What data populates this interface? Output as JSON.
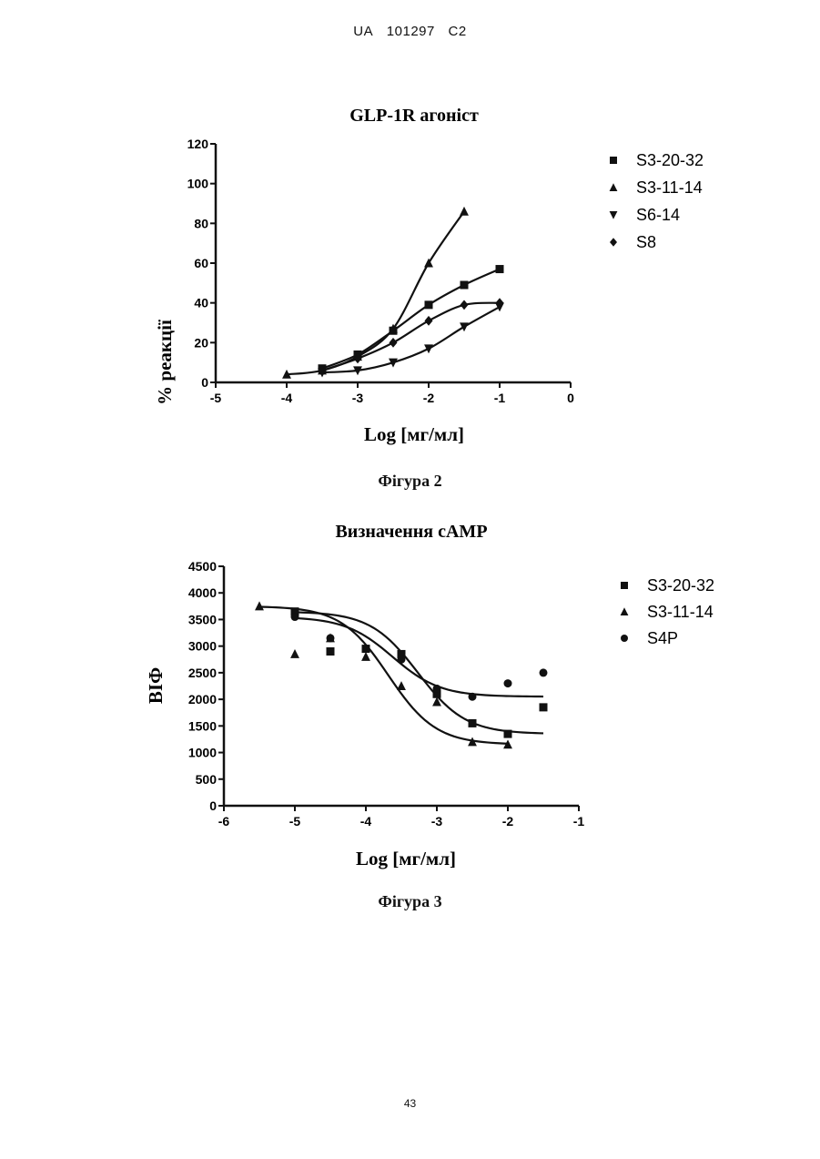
{
  "header": {
    "country": "UA",
    "number": "101297",
    "kind": "C2"
  },
  "figure2": {
    "caption": "Фігура 2"
  },
  "figure3": {
    "caption": "Фігура 3"
  },
  "page_number": "43",
  "chart_data": [
    {
      "type": "line",
      "title": "GLP-1R агоніст",
      "xlabel": "Log [мг/мл]",
      "ylabel": "% реакції",
      "xlim": [
        -5,
        0
      ],
      "ylim": [
        0,
        120
      ],
      "xticks": [
        -5,
        -4,
        -3,
        -2,
        -1,
        0
      ],
      "yticks": [
        0,
        20,
        40,
        60,
        80,
        100,
        120
      ],
      "legend_position": "right",
      "series": [
        {
          "name": "S3-20-32",
          "marker": "square",
          "x": [
            -3.5,
            -3,
            -2.5,
            -2,
            -1.5,
            -1
          ],
          "y": [
            7,
            14,
            26,
            39,
            49,
            57
          ]
        },
        {
          "name": "S3-11-14",
          "marker": "triangle-up",
          "x": [
            -4,
            -3.5,
            -3,
            -2.5,
            -2,
            -1.5
          ],
          "y": [
            4,
            6,
            13,
            27,
            60,
            86
          ]
        },
        {
          "name": "S6-14",
          "marker": "triangle-down",
          "x": [
            -3.5,
            -3,
            -2.5,
            -2,
            -1.5,
            -1
          ],
          "y": [
            5,
            6,
            10,
            17,
            28,
            38
          ]
        },
        {
          "name": "S8",
          "marker": "diamond",
          "x": [
            -3.5,
            -3,
            -2.5,
            -2,
            -1.5,
            -1
          ],
          "y": [
            6,
            12,
            20,
            31,
            39,
            40
          ]
        }
      ]
    },
    {
      "type": "scatter",
      "title": "Визначення cAMP",
      "xlabel": "Log [мг/мл]",
      "ylabel": "ВІФ",
      "xlim": [
        -6,
        -1
      ],
      "ylim": [
        0,
        4500
      ],
      "xticks": [
        -6,
        -5,
        -4,
        -3,
        -2,
        -1
      ],
      "yticks": [
        0,
        500,
        1000,
        1500,
        2000,
        2500,
        3000,
        3500,
        4000,
        4500
      ],
      "legend_position": "right",
      "series": [
        {
          "name": "S3-20-32",
          "marker": "square",
          "x": [
            -5,
            -4.5,
            -4,
            -3.5,
            -3,
            -2.5,
            -2,
            -1.5
          ],
          "y": [
            3650,
            2900,
            2950,
            2850,
            2100,
            1550,
            1350,
            1850
          ]
        },
        {
          "name": "S3-11-14",
          "marker": "triangle-up",
          "x": [
            -5.5,
            -5,
            -4.5,
            -4,
            -3.5,
            -3,
            -2.5,
            -2
          ],
          "y": [
            3750,
            2850,
            3150,
            2800,
            2250,
            1950,
            1200,
            1150
          ]
        },
        {
          "name": "S4P",
          "marker": "circle",
          "x": [
            -5,
            -4.5,
            -4,
            -3.5,
            -3,
            -2.5,
            -2,
            -1.5
          ],
          "y": [
            3550,
            3150,
            2950,
            2750,
            2200,
            2050,
            2300,
            2500
          ]
        }
      ]
    }
  ]
}
